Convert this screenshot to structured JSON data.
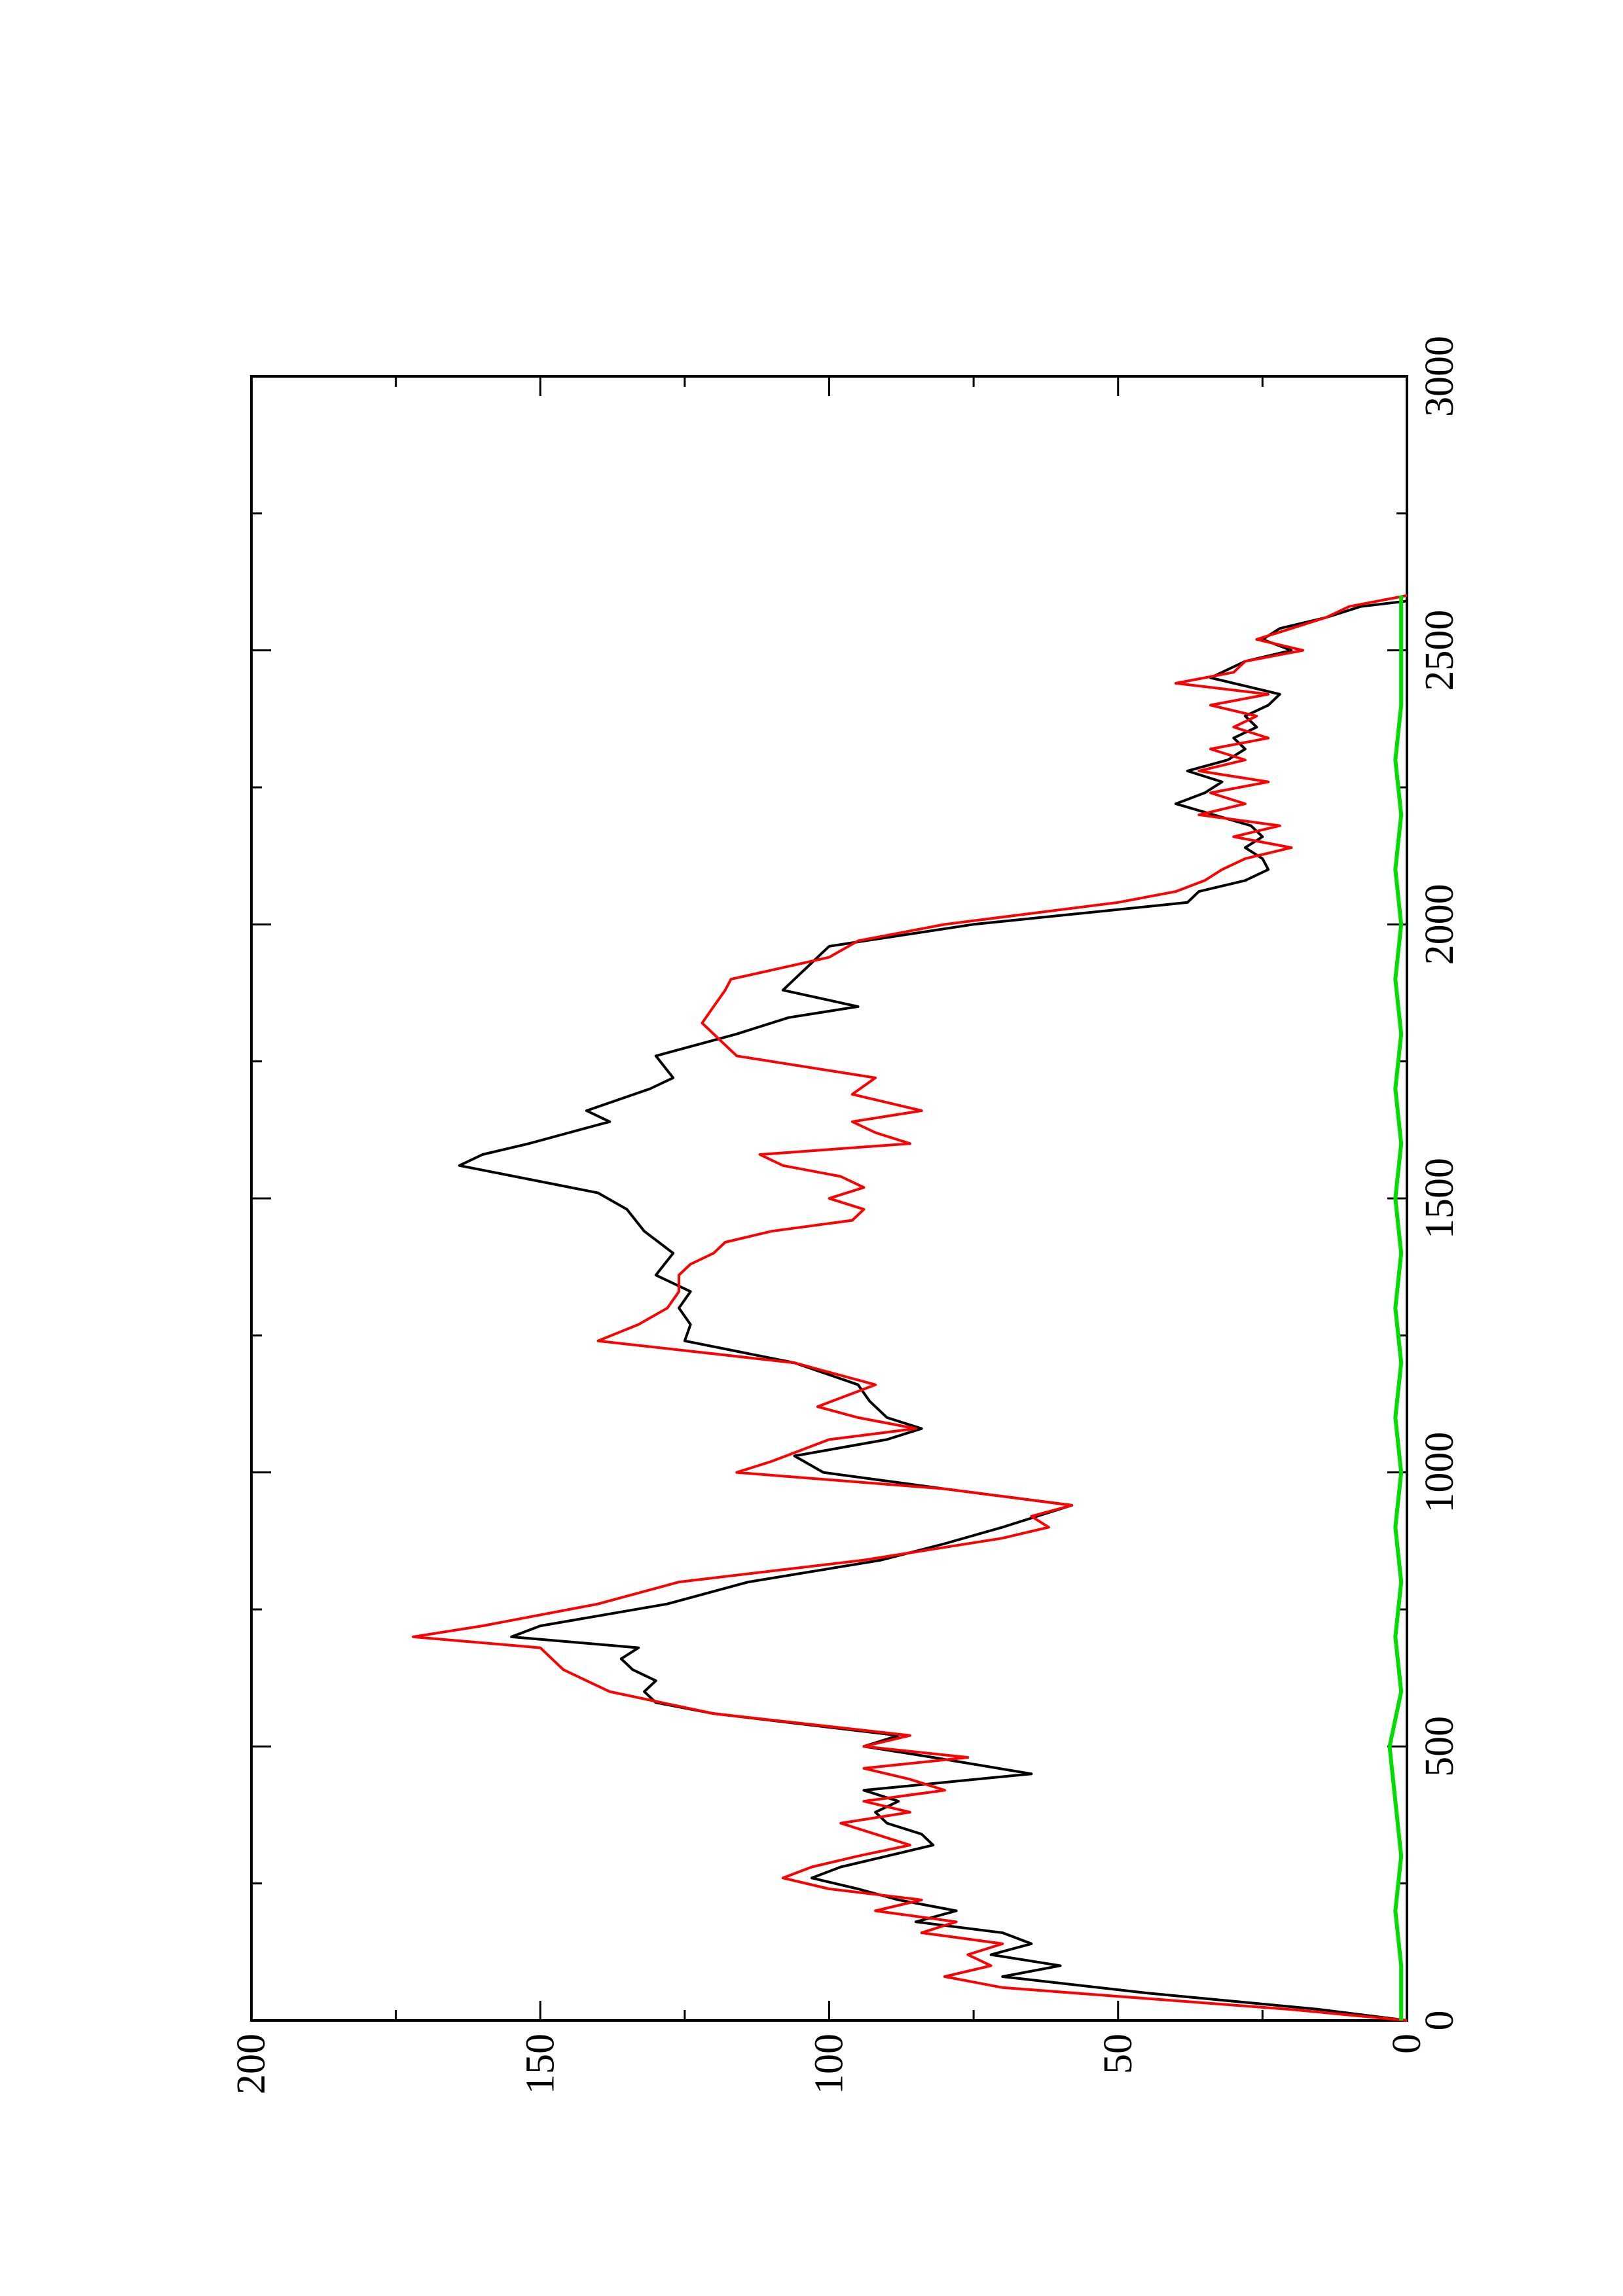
{
  "chart_data": {
    "type": "line",
    "orientation": "rotated-90-clockwise",
    "title": "",
    "xlabel": "",
    "ylabel": "",
    "xlim": [
      0,
      3000
    ],
    "ylim": [
      0,
      200
    ],
    "x_ticks": [
      0,
      500,
      1000,
      1500,
      2000,
      2500,
      3000
    ],
    "x_minor_ticks": [
      250,
      750,
      1250,
      1750,
      2250,
      2750
    ],
    "y_ticks": [
      0,
      50,
      100,
      150,
      200
    ],
    "y_minor_ticks": [
      25,
      75,
      125,
      175
    ],
    "x_tick_labels": [
      "0",
      "500",
      "1000",
      "1500",
      "2000",
      "2500",
      "3000"
    ],
    "y_tick_labels": [
      "0",
      "50",
      "100",
      "150",
      "200"
    ],
    "grid": false,
    "legend": "none",
    "series": [
      {
        "color": "#000000",
        "x": [
          0,
          20,
          50,
          80,
          100,
          120,
          140,
          160,
          180,
          200,
          220,
          240,
          260,
          280,
          300,
          320,
          340,
          360,
          380,
          400,
          420,
          450,
          480,
          500,
          520,
          560,
          580,
          600,
          620,
          640,
          660,
          680,
          700,
          720,
          760,
          800,
          840,
          870,
          900,
          940,
          970,
          1000,
          1030,
          1060,
          1080,
          1100,
          1130,
          1160,
          1200,
          1240,
          1270,
          1300,
          1330,
          1360,
          1400,
          1440,
          1480,
          1510,
          1560,
          1580,
          1600,
          1620,
          1640,
          1660,
          1700,
          1720,
          1760,
          1800,
          1830,
          1850,
          1880,
          1900,
          1940,
          1960,
          2000,
          2040,
          2060,
          2080,
          2100,
          2120,
          2140,
          2160,
          2180,
          2220,
          2240,
          2260,
          2280,
          2300,
          2320,
          2340,
          2360,
          2380,
          2400,
          2420,
          2450,
          2480,
          2500,
          2520,
          2540,
          2560,
          2580,
          2590
        ],
        "y": [
          0,
          15,
          45,
          70,
          60,
          72,
          65,
          70,
          85,
          78,
          88,
          95,
          103,
          98,
          90,
          82,
          84,
          90,
          92,
          88,
          94,
          65,
          82,
          94,
          88,
          120,
          130,
          132,
          130,
          134,
          136,
          133,
          155,
          150,
          128,
          114,
          91,
          80,
          70,
          58,
          80,
          101,
          106,
          90,
          84,
          90,
          93,
          95,
          106,
          125,
          124,
          126,
          124,
          130,
          127,
          132,
          135,
          140,
          164,
          160,
          152,
          145,
          138,
          142,
          131,
          127,
          130,
          116,
          107,
          95,
          108,
          106,
          102,
          100,
          75,
          38,
          36,
          28,
          24,
          25,
          28,
          25,
          27,
          40,
          35,
          32,
          38,
          31,
          28,
          30,
          26,
          28,
          24,
          22,
          34,
          28,
          20,
          25,
          22,
          14,
          8,
          0
        ]
      },
      {
        "color": "#ff0000",
        "x": [
          0,
          20,
          40,
          60,
          80,
          100,
          120,
          140,
          160,
          180,
          200,
          220,
          240,
          260,
          280,
          300,
          320,
          340,
          360,
          380,
          400,
          420,
          440,
          460,
          480,
          500,
          520,
          560,
          600,
          640,
          680,
          700,
          720,
          760,
          800,
          840,
          880,
          900,
          920,
          940,
          970,
          1000,
          1020,
          1060,
          1080,
          1100,
          1120,
          1160,
          1200,
          1240,
          1270,
          1300,
          1330,
          1360,
          1380,
          1400,
          1420,
          1440,
          1460,
          1480,
          1500,
          1520,
          1540,
          1560,
          1580,
          1600,
          1620,
          1640,
          1660,
          1690,
          1720,
          1760,
          1790,
          1820,
          1850,
          1880,
          1900,
          1940,
          1970,
          2000,
          2040,
          2060,
          2080,
          2100,
          2120,
          2140,
          2160,
          2180,
          2200,
          2220,
          2240,
          2260,
          2280,
          2300,
          2320,
          2340,
          2360,
          2380,
          2400,
          2420,
          2440,
          2460,
          2480,
          2500,
          2520,
          2540,
          2560,
          2580,
          2600
        ],
        "y": [
          0,
          20,
          45,
          70,
          80,
          72,
          76,
          70,
          84,
          78,
          92,
          84,
          100,
          108,
          103,
          95,
          86,
          92,
          98,
          86,
          94,
          80,
          86,
          94,
          76,
          94,
          86,
          120,
          138,
          146,
          150,
          172,
          160,
          140,
          126,
          94,
          70,
          62,
          65,
          58,
          80,
          116,
          110,
          100,
          85,
          95,
          102,
          92,
          106,
          140,
          133,
          128,
          126,
          126,
          124,
          120,
          118,
          110,
          96,
          94,
          100,
          94,
          98,
          108,
          112,
          86,
          92,
          96,
          84,
          96,
          92,
          116,
          119,
          122,
          120,
          118,
          117,
          100,
          95,
          80,
          50,
          40,
          35,
          32,
          28,
          20,
          30,
          22,
          36,
          28,
          34,
          24,
          36,
          28,
          34,
          24,
          30,
          26,
          34,
          24,
          40,
          30,
          28,
          18,
          26,
          20,
          14,
          10,
          0
        ]
      },
      {
        "color": "#00dd00",
        "x": [
          0,
          100,
          200,
          300,
          400,
          500,
          600,
          700,
          800,
          900,
          1000,
          1100,
          1200,
          1300,
          1400,
          1500,
          1600,
          1700,
          1800,
          1900,
          2000,
          2100,
          2200,
          2300,
          2400,
          2500,
          2600
        ],
        "y": [
          1,
          1,
          2,
          1,
          2,
          3,
          1,
          2,
          1,
          2,
          1,
          2,
          1,
          2,
          1,
          2,
          1,
          2,
          1,
          2,
          1,
          2,
          1,
          2,
          1,
          1,
          1
        ]
      }
    ]
  }
}
